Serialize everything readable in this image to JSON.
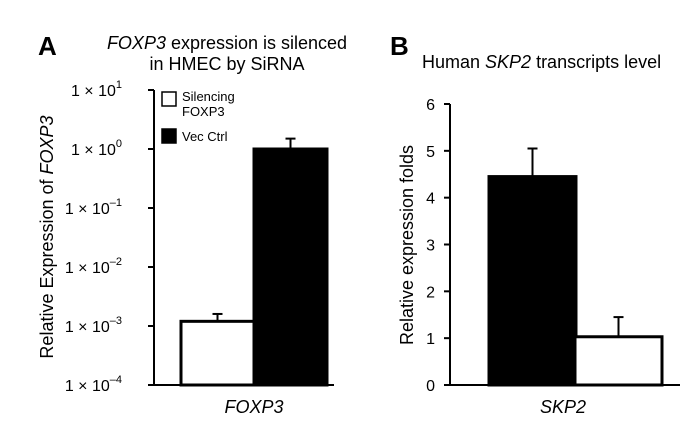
{
  "chart_data": [
    {
      "panel": "A",
      "type": "bar",
      "title_line1_em": "FOXP3",
      "title_line1_rest": " expression is silenced",
      "title_line2": "in HMEC by SiRNA",
      "ylabel_prefix": "Relative Expression of ",
      "ylabel_em": "FOXP3",
      "xlabel": "FOXP3",
      "yscale": "log",
      "ylim": [
        0.0001,
        10
      ],
      "yticks": [
        "1 × 10",
        "1 × 10",
        "1 × 10",
        "1 × 10",
        "1 × 10",
        "1 × 10"
      ],
      "ytick_exps": [
        "1",
        "0",
        "–1",
        "–2",
        "–3",
        "–4"
      ],
      "legend": [
        {
          "label_line1": "Silencing",
          "label_line2": "FOXP3",
          "fill": "#ffffff"
        },
        {
          "label_line1": "Vec Ctrl",
          "label_line2": "",
          "fill": "#000000"
        }
      ],
      "series": [
        {
          "name": "Silencing FOXP3",
          "values": [
            0.0012
          ],
          "error": [
            0.0016
          ],
          "color": "#ffffff"
        },
        {
          "name": "Vec Ctrl",
          "values": [
            1.0
          ],
          "error": [
            1.5
          ],
          "color": "#000000"
        }
      ]
    },
    {
      "panel": "B",
      "type": "bar",
      "title_prefix": "Human ",
      "title_em": "SKP2",
      "title_suffix": " transcripts level",
      "ylabel": "Relative expression folds",
      "xlabel": "SKP2",
      "yscale": "linear",
      "ylim": [
        0,
        6
      ],
      "yticks": [
        "0",
        "1",
        "2",
        "3",
        "4",
        "5",
        "6"
      ],
      "series": [
        {
          "values": [
            4.45
          ],
          "error": [
            5.05
          ],
          "color": "#000000"
        },
        {
          "values": [
            1.03
          ],
          "error": [
            1.45
          ],
          "color": "#ffffff"
        }
      ]
    }
  ]
}
